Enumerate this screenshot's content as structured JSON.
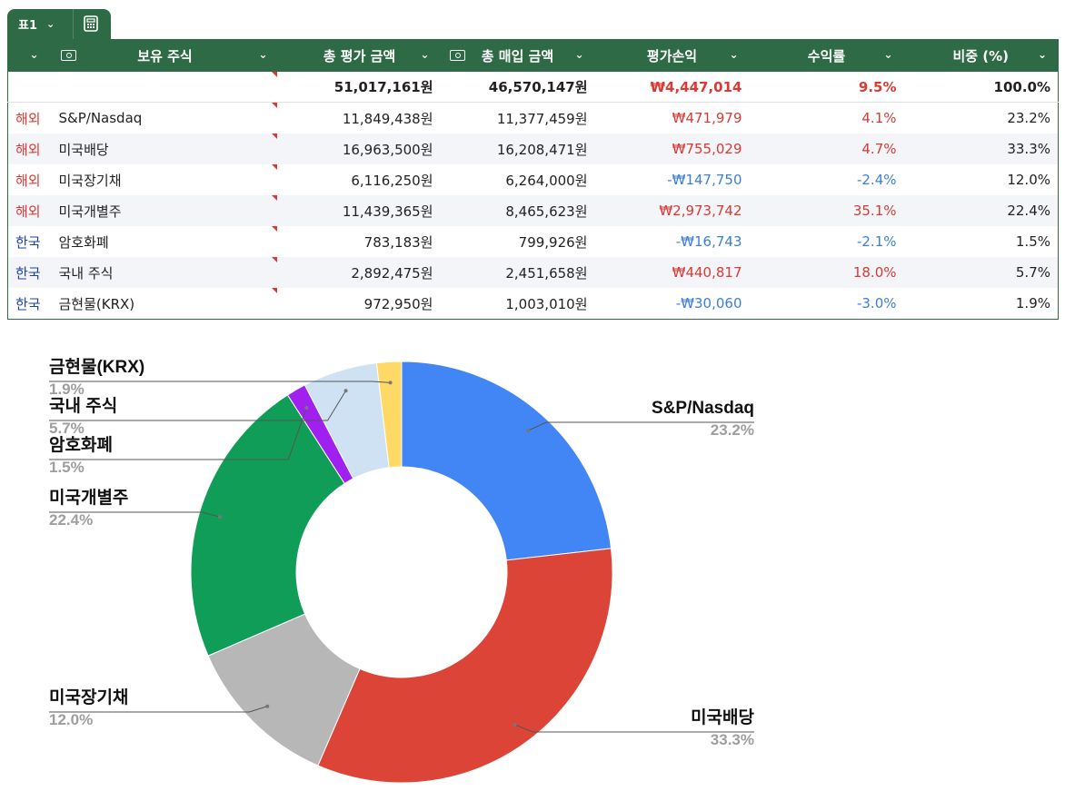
{
  "sheet": {
    "tab_label": "표1"
  },
  "table": {
    "headers": [
      "",
      "보유 주식",
      "총 평가 금액",
      "총 매입 금액",
      "평가손익",
      "수익률",
      "비중 (%)"
    ],
    "total": {
      "eval": "51,017,161원",
      "purchase": "46,570,147원",
      "pnl": "₩4,447,014",
      "return": "9.5%",
      "weight": "100.0%"
    },
    "rows": [
      {
        "region": "해외",
        "name": "S&P/Nasdaq",
        "eval": "11,849,438원",
        "purchase": "11,377,459원",
        "pnl": "₩471,979",
        "return": "4.1%",
        "weight": "23.2%"
      },
      {
        "region": "해외",
        "name": "미국배당",
        "eval": "16,963,500원",
        "purchase": "16,208,471원",
        "pnl": "₩755,029",
        "return": "4.7%",
        "weight": "33.3%"
      },
      {
        "region": "해외",
        "name": "미국장기채",
        "eval": "6,116,250원",
        "purchase": "6,264,000원",
        "pnl": "-₩147,750",
        "return": "-2.4%",
        "weight": "12.0%"
      },
      {
        "region": "해외",
        "name": "미국개별주",
        "eval": "11,439,365원",
        "purchase": "8,465,623원",
        "pnl": "₩2,973,742",
        "return": "35.1%",
        "weight": "22.4%"
      },
      {
        "region": "한국",
        "name": "암호화폐",
        "eval": "783,183원",
        "purchase": "799,926원",
        "pnl": "-₩16,743",
        "return": "-2.1%",
        "weight": "1.5%"
      },
      {
        "region": "한국",
        "name": "국내 주식",
        "eval": "2,892,475원",
        "purchase": "2,451,658원",
        "pnl": "₩440,817",
        "return": "18.0%",
        "weight": "5.7%"
      },
      {
        "region": "한국",
        "name": "금현물(KRX)",
        "eval": "972,950원",
        "purchase": "1,003,010원",
        "pnl": "-₩30,060",
        "return": "-3.0%",
        "weight": "1.9%"
      }
    ]
  },
  "chart_data": {
    "type": "pie",
    "donut": true,
    "categories": [
      "S&P/Nasdaq",
      "미국배당",
      "미국장기채",
      "미국개별주",
      "암호화폐",
      "국내 주식",
      "금현물(KRX)"
    ],
    "values": [
      23.2,
      33.3,
      12.0,
      22.4,
      1.5,
      5.7,
      1.9
    ],
    "labels": [
      "23.2%",
      "33.3%",
      "12.0%",
      "22.4%",
      "1.5%",
      "5.7%",
      "1.9%"
    ],
    "colors": [
      "#4285f4",
      "#db4437",
      "#b7b7b7",
      "#0f9d58",
      "#a020f0",
      "#cfe2f3",
      "#ffd966"
    ],
    "legend": "none"
  }
}
